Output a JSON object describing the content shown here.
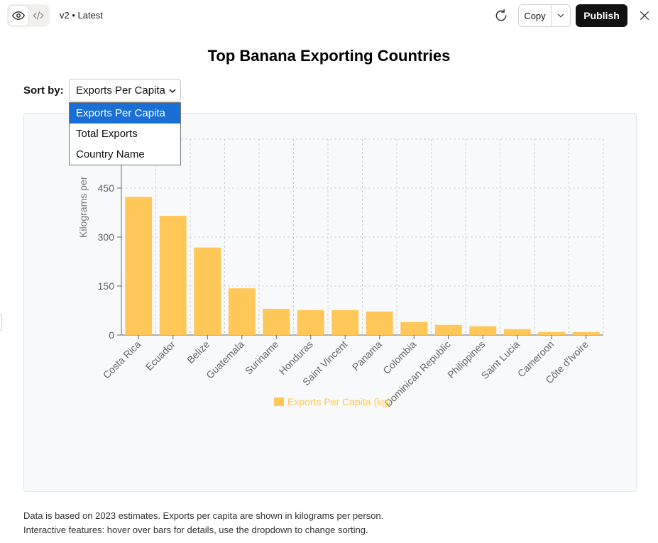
{
  "header": {
    "version_label": "v2 • Latest",
    "copy_label": "Copy",
    "publish_label": "Publish"
  },
  "page": {
    "title": "Top Banana Exporting Countries",
    "sort_label": "Sort by:",
    "sort_selected": "Exports Per Capita",
    "sort_options": [
      "Exports Per Capita",
      "Total Exports",
      "Country Name"
    ],
    "notes": [
      "Data is based on 2023 estimates. Exports per capita are shown in kilograms per person.",
      "Interactive features: hover over bars for details, use the dropdown to change sorting."
    ]
  },
  "colors": {
    "bar": "#ffc658",
    "accent": "#1a6fd6",
    "publish_bg": "#111111"
  },
  "chart_data": {
    "type": "bar",
    "title": "",
    "ylabel": "Kilograms per",
    "xlabel": "",
    "ylim": [
      0,
      600
    ],
    "yticks": [
      0,
      150,
      300,
      450
    ],
    "grid": true,
    "legend_position": "bottom",
    "categories": [
      "Costa Rica",
      "Ecuador",
      "Belize",
      "Guatemala",
      "Suriname",
      "Honduras",
      "Saint Vincent",
      "Panama",
      "Colombia",
      "Dominican Republic",
      "Philippines",
      "Saint Lucia",
      "Cameroon",
      "Côte d'Ivoire"
    ],
    "series": [
      {
        "name": "Exports Per Capita (kg)",
        "values": [
          423,
          365,
          268,
          143,
          80,
          76,
          76,
          72,
          40,
          31,
          27,
          18,
          9,
          9
        ]
      }
    ]
  }
}
